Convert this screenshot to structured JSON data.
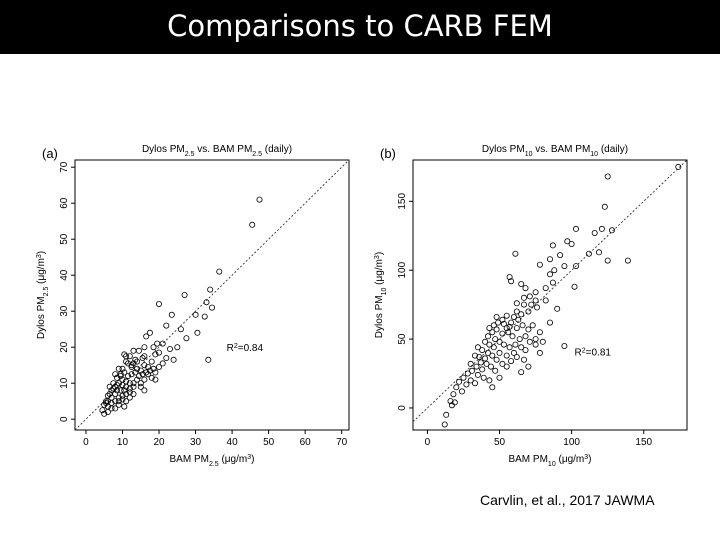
{
  "slide": {
    "title": "Comparisons to CARB FEM",
    "citation": "Carvlin, et al., 2017 JAWMA"
  },
  "chart_data": [
    {
      "type": "scatter",
      "panel_label": "(a)",
      "title": {
        "pre": "Dylos PM",
        "sub": "2.5",
        "mid": " vs. BAM PM",
        "sub2": "2.5",
        "post": " (daily)"
      },
      "xlabel": {
        "pre": "BAM PM",
        "sub": "2.5",
        "post": " (μg/m",
        "sup": "3",
        "end": ")"
      },
      "ylabel": {
        "pre": "Dylos PM",
        "sub": "2.5",
        "post": " (μg/m",
        "sup": "3",
        "end": ")"
      },
      "xlim": [
        -3,
        72
      ],
      "ylim": [
        -3,
        72
      ],
      "xticks": [
        0,
        10,
        20,
        30,
        40,
        50,
        60,
        70
      ],
      "yticks": [
        0,
        10,
        20,
        30,
        40,
        50,
        60,
        70
      ],
      "annotation": {
        "text": "R",
        "sup": "2",
        "rest": "=0.84",
        "x": 38.5,
        "y": 19
      },
      "reference_line": "1:1 dashed",
      "points": [
        [
          47.5,
          61
        ],
        [
          45.5,
          54
        ],
        [
          36.5,
          41
        ],
        [
          34,
          36
        ],
        [
          27,
          34.5
        ],
        [
          20,
          32
        ],
        [
          33,
          32.5
        ],
        [
          32.5,
          28.5
        ],
        [
          34.5,
          31
        ],
        [
          30,
          29
        ],
        [
          23.5,
          29
        ],
        [
          22,
          26
        ],
        [
          26,
          25
        ],
        [
          30.5,
          24
        ],
        [
          27.5,
          22.5
        ],
        [
          19.5,
          21
        ],
        [
          17.5,
          24
        ],
        [
          16.5,
          23
        ],
        [
          18.5,
          20
        ],
        [
          25,
          20
        ],
        [
          23,
          19.5
        ],
        [
          21,
          21
        ],
        [
          20,
          18.5
        ],
        [
          19,
          18
        ],
        [
          16,
          17.5
        ],
        [
          14.5,
          19
        ],
        [
          15.5,
          17
        ],
        [
          24,
          16.5
        ],
        [
          33.5,
          16.5
        ],
        [
          18,
          16
        ],
        [
          17,
          14.5
        ],
        [
          16,
          15
        ],
        [
          14,
          16
        ],
        [
          13,
          15.5
        ],
        [
          12,
          17.5
        ],
        [
          10.5,
          18
        ],
        [
          11,
          16
        ],
        [
          12.5,
          14.5
        ],
        [
          13.5,
          13
        ],
        [
          14,
          14
        ],
        [
          15,
          13.5
        ],
        [
          17,
          12.5
        ],
        [
          18,
          11.5
        ],
        [
          19,
          11
        ],
        [
          12.5,
          12.5
        ],
        [
          11.5,
          12
        ],
        [
          10.5,
          13
        ],
        [
          9.5,
          12
        ],
        [
          8,
          12.5
        ],
        [
          10,
          11
        ],
        [
          11,
          10.5
        ],
        [
          12,
          10
        ],
        [
          13,
          10
        ],
        [
          14,
          11
        ],
        [
          15,
          10
        ],
        [
          16,
          11
        ],
        [
          13,
          9
        ],
        [
          12,
          8.5
        ],
        [
          11,
          9
        ],
        [
          10,
          9.5
        ],
        [
          9,
          10
        ],
        [
          8.5,
          8
        ],
        [
          8,
          9
        ],
        [
          9.5,
          8
        ],
        [
          10.5,
          8
        ],
        [
          11,
          7
        ],
        [
          12,
          7.5
        ],
        [
          13,
          7
        ],
        [
          10,
          6.5
        ],
        [
          9,
          6
        ],
        [
          8,
          7
        ],
        [
          7,
          8
        ],
        [
          6.5,
          7
        ],
        [
          7,
          6
        ],
        [
          6,
          6.5
        ],
        [
          5.5,
          5
        ],
        [
          6,
          5
        ],
        [
          7,
          4.5
        ],
        [
          8,
          5
        ],
        [
          9,
          5
        ],
        [
          10,
          5.5
        ],
        [
          5,
          4
        ],
        [
          6,
          3.5
        ],
        [
          7,
          3
        ],
        [
          8,
          3
        ],
        [
          4.5,
          2.5
        ],
        [
          5.5,
          4.5
        ],
        [
          6.5,
          9
        ],
        [
          7.5,
          10
        ],
        [
          8.5,
          9.5
        ],
        [
          9.5,
          12.5
        ],
        [
          10,
          14
        ],
        [
          11.5,
          15.5
        ],
        [
          12.5,
          15
        ],
        [
          13.5,
          16.5
        ],
        [
          14.5,
          12
        ],
        [
          15.5,
          12.5
        ],
        [
          16.5,
          13
        ],
        [
          17.5,
          13.5
        ],
        [
          18.5,
          14
        ],
        [
          20,
          14.5
        ],
        [
          21,
          15.5
        ],
        [
          15,
          9
        ],
        [
          16,
          8
        ],
        [
          12,
          6
        ],
        [
          11,
          5
        ],
        [
          9,
          4
        ],
        [
          10.5,
          3.5
        ],
        [
          6,
          2
        ],
        [
          5,
          1.5
        ],
        [
          16,
          20
        ],
        [
          13,
          19
        ],
        [
          11,
          17.5
        ],
        [
          9,
          14
        ],
        [
          8.5,
          11.5
        ],
        [
          7.5,
          8.5
        ],
        [
          19,
          13
        ],
        [
          22,
          17
        ]
      ]
    },
    {
      "type": "scatter",
      "panel_label": "(b)",
      "title": {
        "pre": "Dylos PM",
        "sub": "10",
        "mid": " vs. BAM PM",
        "sub2": "10",
        "post": " (daily)"
      },
      "xlabel": {
        "pre": "BAM PM",
        "sub": "10",
        "post": " (μg/m",
        "sup": "3",
        "end": ")"
      },
      "ylabel": {
        "pre": "Dylos PM",
        "sub": "10",
        "post": " (μg/m",
        "sup": "3",
        "end": ")"
      },
      "xlim": [
        -10,
        180
      ],
      "ylim": [
        -16,
        180
      ],
      "xticks": [
        0,
        50,
        100,
        150
      ],
      "yticks": [
        0,
        50,
        100,
        150
      ],
      "annotation": {
        "text": "R",
        "sup": "2",
        "rest": "=0.81",
        "x": 102,
        "y": 38
      },
      "reference_line": "1:1 dashed",
      "points": [
        [
          174,
          175
        ],
        [
          125,
          168
        ],
        [
          123,
          146
        ],
        [
          128,
          129
        ],
        [
          121,
          130
        ],
        [
          116,
          127
        ],
        [
          103,
          130
        ],
        [
          112,
          112
        ],
        [
          119,
          113
        ],
        [
          139,
          107
        ],
        [
          125,
          107
        ],
        [
          100,
          119
        ],
        [
          97,
          121
        ],
        [
          87,
          118
        ],
        [
          92,
          111
        ],
        [
          85,
          108
        ],
        [
          95,
          103
        ],
        [
          103,
          103
        ],
        [
          78,
          104
        ],
        [
          85,
          97
        ],
        [
          87,
          91
        ],
        [
          88,
          100
        ],
        [
          102,
          88
        ],
        [
          82,
          87
        ],
        [
          75,
          84
        ],
        [
          82,
          78
        ],
        [
          75,
          78
        ],
        [
          71,
          81
        ],
        [
          67,
          80
        ],
        [
          62,
          76
        ],
        [
          67,
          75
        ],
        [
          62,
          70
        ],
        [
          61,
          112
        ],
        [
          57,
          95
        ],
        [
          58,
          92
        ],
        [
          65,
          90
        ],
        [
          68,
          87
        ],
        [
          72,
          75
        ],
        [
          76,
          73
        ],
        [
          70,
          70
        ],
        [
          65,
          68
        ],
        [
          60,
          66
        ],
        [
          55,
          67
        ],
        [
          52,
          64
        ],
        [
          48,
          66
        ],
        [
          53,
          61
        ],
        [
          57,
          59
        ],
        [
          62,
          58
        ],
        [
          66,
          60
        ],
        [
          70,
          57
        ],
        [
          73,
          60
        ],
        [
          78,
          55
        ],
        [
          75,
          50
        ],
        [
          71,
          48
        ],
        [
          68,
          52
        ],
        [
          64,
          50
        ],
        [
          59,
          52
        ],
        [
          56,
          55
        ],
        [
          52,
          54
        ],
        [
          48,
          57
        ],
        [
          45,
          55
        ],
        [
          42,
          52
        ],
        [
          47,
          50
        ],
        [
          50,
          48
        ],
        [
          53,
          46
        ],
        [
          57,
          44
        ],
        [
          61,
          46
        ],
        [
          65,
          44
        ],
        [
          68,
          42
        ],
        [
          75,
          46
        ],
        [
          78,
          40
        ],
        [
          60,
          40
        ],
        [
          55,
          38
        ],
        [
          50,
          40
        ],
        [
          46,
          44
        ],
        [
          43,
          46
        ],
        [
          40,
          48
        ],
        [
          38,
          42
        ],
        [
          35,
          44
        ],
        [
          42,
          40
        ],
        [
          45,
          38
        ],
        [
          48,
          35
        ],
        [
          52,
          32
        ],
        [
          55,
          30
        ],
        [
          58,
          34
        ],
        [
          62,
          37
        ],
        [
          67,
          35
        ],
        [
          40,
          36
        ],
        [
          36,
          37
        ],
        [
          33,
          38
        ],
        [
          37,
          33
        ],
        [
          41,
          32
        ],
        [
          44,
          30
        ],
        [
          47,
          27
        ],
        [
          38,
          28
        ],
        [
          34,
          30
        ],
        [
          30,
          32
        ],
        [
          31,
          27
        ],
        [
          35,
          24
        ],
        [
          39,
          22
        ],
        [
          43,
          20
        ],
        [
          28,
          25
        ],
        [
          25,
          22
        ],
        [
          30,
          20
        ],
        [
          33,
          18
        ],
        [
          27,
          17
        ],
        [
          22,
          19
        ],
        [
          20,
          15
        ],
        [
          24,
          12
        ],
        [
          18,
          10
        ],
        [
          16,
          5
        ],
        [
          17,
          2
        ],
        [
          19,
          4
        ],
        [
          13,
          -5
        ],
        [
          12,
          -12
        ],
        [
          95,
          45
        ],
        [
          80,
          48
        ],
        [
          85,
          62
        ],
        [
          90,
          72
        ],
        [
          70,
          30
        ],
        [
          65,
          26
        ],
        [
          50,
          22
        ],
        [
          45,
          15
        ],
        [
          55,
          58
        ],
        [
          58,
          62
        ],
        [
          63,
          64
        ],
        [
          49,
          62
        ],
        [
          46,
          60
        ],
        [
          43,
          58
        ]
      ]
    }
  ]
}
